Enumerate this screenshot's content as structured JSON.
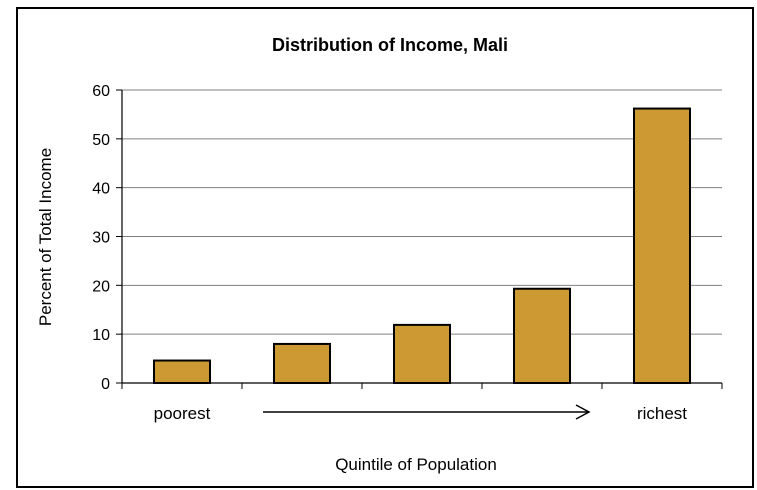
{
  "chart_data": {
    "type": "bar",
    "title": "Distribution of Income, Mali",
    "xlabel": "Quintile of Population",
    "ylabel": "Percent of Total Income",
    "categories": [
      "poorest",
      "",
      "",
      "",
      "richest"
    ],
    "values": [
      4.6,
      8.0,
      11.9,
      19.3,
      56.2
    ],
    "ylim": [
      0,
      60
    ],
    "yticks": [
      "0",
      "10",
      "20",
      "30",
      "40",
      "50",
      "60"
    ],
    "grid": true,
    "legend": "none",
    "colors": {
      "bar_fill": "#CC9933",
      "bar_stroke": "#000000",
      "grid": "#808080"
    }
  }
}
